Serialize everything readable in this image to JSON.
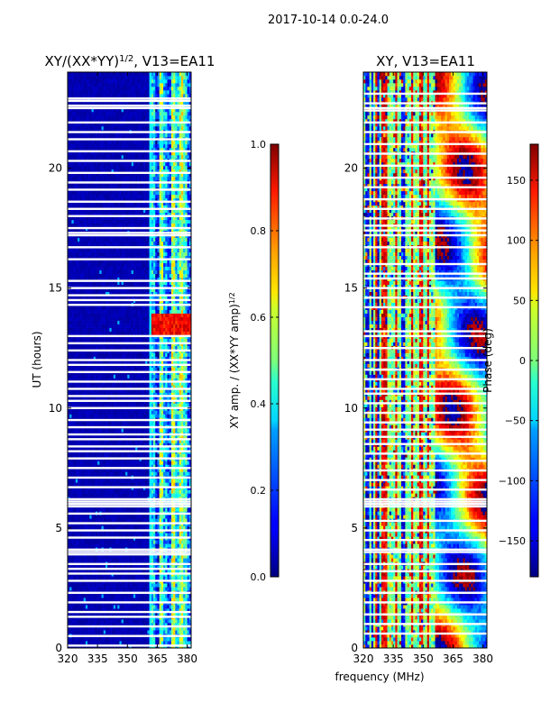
{
  "figure": {
    "suptitle": "2017-10-14 0.0-24.0",
    "xlabel": "frequency (MHz)"
  },
  "colors": {
    "nodata": "#ffffff",
    "jet": [
      "#00007f",
      "#0000ff",
      "#007fff",
      "#00ffff",
      "#7fff7f",
      "#ffff00",
      "#ff7f00",
      "#ff0000",
      "#7f0000"
    ]
  },
  "chart_data": [
    {
      "type": "heatmap",
      "title": "XY/(XX*YY)",
      "title_sup": "1/2",
      "title_suffix": ", V13=EA11",
      "xlabel": "",
      "ylabel": "UT (hours)",
      "xlim": [
        320,
        382
      ],
      "ylim": [
        0,
        24
      ],
      "xticks": [
        320,
        335,
        350,
        365,
        380
      ],
      "yticks": [
        0,
        5,
        10,
        15,
        20
      ],
      "colorbar": {
        "label": "XY amp. / (XX*YY amp)",
        "label_sup": "1/2",
        "min": 0.0,
        "max": 1.0,
        "ticks": [
          0.0,
          0.2,
          0.4,
          0.6,
          0.8,
          1.0
        ],
        "tick_labels": [
          "0.0",
          "0.2",
          "0.4",
          "0.6",
          "0.8",
          "1.0"
        ]
      },
      "description": "Normalized XY amplitude mostly near 0 below 362 MHz; higher values (0.3-0.9) in bands between 362 and 381 MHz; peak around UT 13-14 h",
      "band_profile": [
        {
          "from": 320,
          "to": 361.5,
          "value": 0.03
        },
        {
          "from": 361.5,
          "to": 364,
          "value": 0.35
        },
        {
          "from": 364,
          "to": 366,
          "value": 0.15
        },
        {
          "from": 366,
          "to": 368,
          "value": 0.5
        },
        {
          "from": 368,
          "to": 370,
          "value": 0.3
        },
        {
          "from": 370,
          "to": 372,
          "value": 0.2
        },
        {
          "from": 372,
          "to": 374,
          "value": 0.55
        },
        {
          "from": 374,
          "to": 376,
          "value": 0.35
        },
        {
          "from": 376,
          "to": 378,
          "value": 0.55
        },
        {
          "from": 378,
          "to": 380,
          "value": 0.4
        },
        {
          "from": 380,
          "to": 382,
          "value": 0.2
        }
      ],
      "hot_interval_ut": [
        13.1,
        14.0
      ],
      "flagged_ut": [
        0.1,
        0.5,
        0.9,
        1.3,
        1.5,
        1.9,
        2.3,
        2.8,
        3.1,
        3.3,
        3.5,
        3.9,
        4.0,
        4.1,
        4.6,
        4.9,
        5.2,
        5.6,
        5.9,
        6.0,
        6.1,
        6.2,
        6.7,
        7.1,
        7.5,
        7.9,
        8.2,
        8.4,
        8.7,
        8.9,
        9.2,
        9.5,
        10.0,
        10.3,
        10.5,
        10.8,
        11.1,
        11.5,
        11.8,
        12.0,
        12.4,
        12.7,
        13.0,
        14.3,
        14.5,
        14.7,
        15.0,
        15.3,
        16.2,
        16.7,
        17.2,
        17.3,
        17.5,
        18.0,
        18.3,
        18.6,
        19.1,
        19.4,
        19.8,
        20.3,
        20.7,
        21.2,
        21.5,
        21.9,
        22.5,
        22.6,
        22.8,
        22.9
      ]
    },
    {
      "type": "heatmap",
      "title": "XY, V13=EA11",
      "xlabel": "",
      "ylabel": "",
      "xlim": [
        320,
        382
      ],
      "ylim": [
        0,
        24
      ],
      "xticks": [
        320,
        335,
        350,
        365,
        380
      ],
      "yticks": [
        0,
        5,
        10,
        15,
        20
      ],
      "colorbar": {
        "label": "Phase (deg)",
        "min": -180,
        "max": 180,
        "ticks": [
          -150,
          -100,
          -50,
          0,
          50,
          100,
          150
        ],
        "tick_labels": [
          "−150",
          "−100",
          "−50",
          "0",
          "50",
          "100",
          "150"
        ]
      },
      "description": "XY phase in degrees; noisy vertical striping below 360 MHz, smooth phase-wrapped structure above 355 MHz",
      "flagged_ut": [
        0.6,
        1.0,
        1.4,
        1.9,
        2.3,
        2.8,
        3.2,
        3.5,
        4.0,
        4.1,
        4.5,
        4.9,
        5.3,
        5.9,
        6.0,
        6.1,
        6.2,
        6.6,
        7.0,
        7.4,
        7.8,
        8.1,
        8.5,
        8.8,
        9.1,
        9.4,
        9.8,
        10.2,
        10.6,
        10.8,
        11.2,
        11.6,
        12.0,
        12.5,
        13.0,
        13.2,
        14.2,
        14.6,
        15.0,
        15.4,
        15.6,
        16.0,
        16.7,
        17.2,
        17.4,
        17.6,
        17.9,
        18.3,
        18.7,
        19.2,
        19.6,
        20.1,
        20.6,
        21.0,
        21.5,
        21.9,
        22.4,
        22.5,
        22.7,
        23.1
      ]
    }
  ]
}
